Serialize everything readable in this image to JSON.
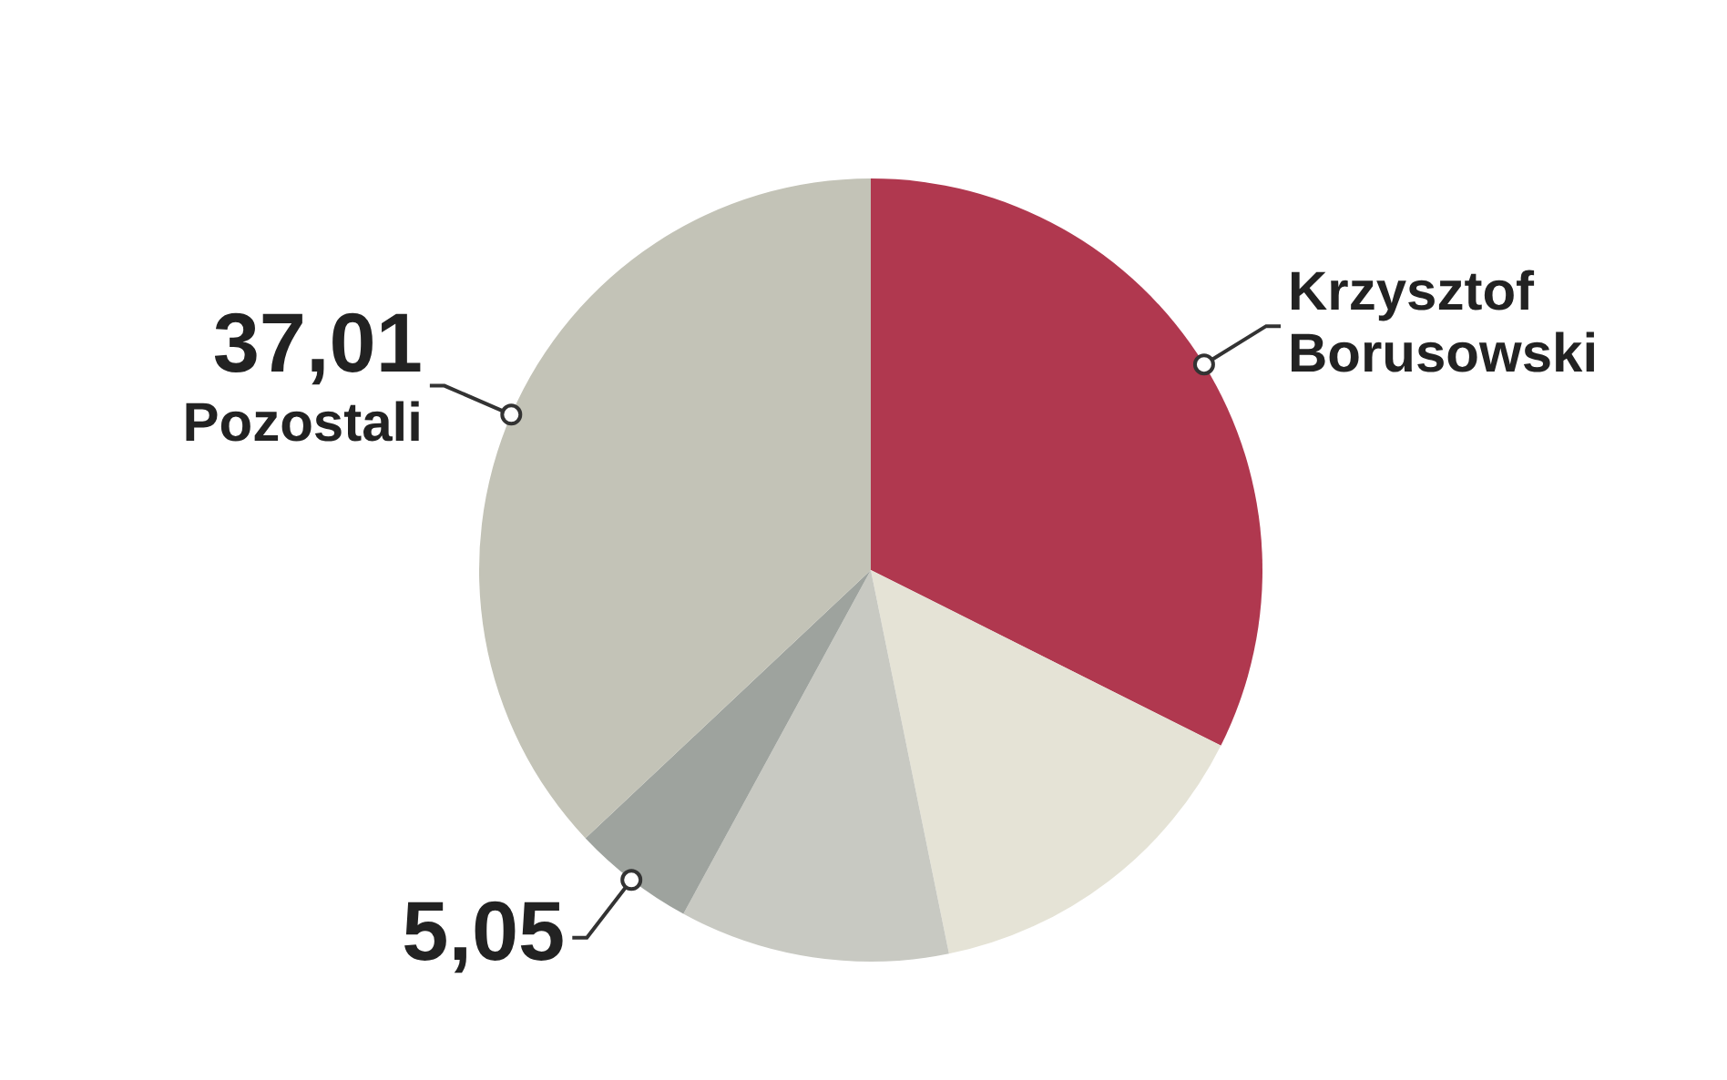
{
  "chart_data": {
    "type": "pie",
    "categories": [
      "Krzysztof Borusowski",
      null,
      null,
      null,
      "Pozostali"
    ],
    "values": [
      32.4,
      14.4,
      11.14,
      5.05,
      37.01
    ],
    "value_labels": [
      null,
      null,
      null,
      "5,05",
      "37,01"
    ],
    "colors": [
      "#b0384f",
      "#e5e3d6",
      "#c8c9c2",
      "#9ea39e",
      "#c3c3b7"
    ]
  }
}
